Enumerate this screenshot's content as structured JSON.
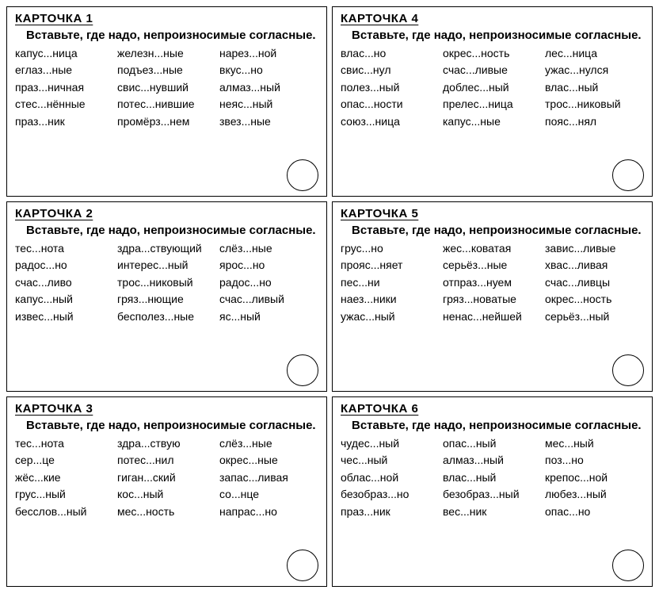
{
  "instruction": "Вставьте, где надо, непроизносимые согласные.",
  "cards": [
    {
      "title": "КАРТОЧКА 1",
      "words": [
        "капус...ница",
        "железн...ные",
        "нарез...ной",
        "еглаз...ные",
        "подъез...ные",
        "вкус...но",
        "праз...ничная",
        "свис...нувший",
        "алмаз...ный",
        "стес...нённые",
        "потес...нившие",
        "неяс...ный",
        "праз...ник",
        "промёрз...нем",
        "звез...ные"
      ]
    },
    {
      "title": "КАРТОЧКА 4",
      "words": [
        "влас...но",
        "окрес...ность",
        "лес...ница",
        "свис...нул",
        "счас...ливые",
        "ужас...нулся",
        "полез...ный",
        "доблес...ный",
        "влас...ный",
        "опас...ности",
        "прелес...ница",
        "трос...никовый",
        "союз...ница",
        "капус...ные",
        "пояс...нял"
      ]
    },
    {
      "title": "КАРТОЧКА 2",
      "words": [
        "тес...нота",
        "здра...ствующий",
        "слёз...ные",
        "радос...но",
        "интерес...ный",
        "ярос...но",
        "счас...ливо",
        "трос...никовый",
        "радос...но",
        "капус...ный",
        "гряз...нющие",
        "счас...ливый",
        "извес...ный",
        "бесполез...ные",
        "яс...ный"
      ]
    },
    {
      "title": "КАРТОЧКА 5",
      "words": [
        "грус...но",
        "жес...коватая",
        "завис...ливые",
        "прояс...няет",
        "серьёз...ные",
        "хвас...ливая",
        "пес...ни",
        "отпраз...нуем",
        "счас...ливцы",
        "наез...ники",
        "гряз...новатые",
        "окрес...ность",
        "ужас...ный",
        "ненас...нейшей",
        "серьёз...ный"
      ]
    },
    {
      "title": "КАРТОЧКА 3",
      "words": [
        "тес...нота",
        "здра...ствую",
        "слёз...ные",
        "сер...це",
        "потес...нил",
        "окрес...ные",
        "жёс...кие",
        "гиган...ский",
        "запас...ливая",
        "грус...ный",
        "кос...ный",
        "со...нце",
        "бесслов...ный",
        "мес...ность",
        "напрас...но"
      ]
    },
    {
      "title": "КАРТОЧКА 6",
      "words": [
        "чудес...ный",
        "опас...ный",
        "мес...ный",
        "чес...ный",
        "алмаз...ный",
        "поз...но",
        "облас...ной",
        "влас...ный",
        "крепос...ной",
        "безобраз...но",
        "безобраз...ный",
        "любез...ный",
        "праз...ник",
        "вес...ник",
        "опас...но"
      ]
    }
  ]
}
